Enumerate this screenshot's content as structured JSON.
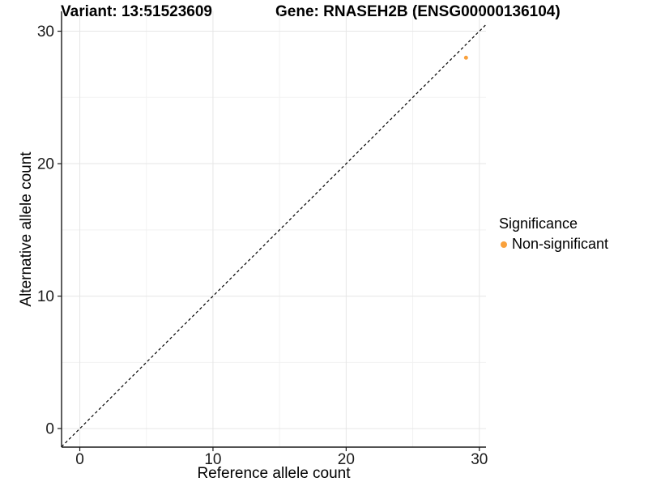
{
  "chart_data": {
    "type": "scatter",
    "titles": {
      "variant": "Variant: 13:51523609",
      "gene": "Gene: RNASEH2B (ENSG00000136104)"
    },
    "xlabel": "Reference allele count",
    "ylabel": "Alternative allele count",
    "xlim": [
      -1.37,
      30.5
    ],
    "ylim": [
      -1.4,
      31.5
    ],
    "x_ticks": [
      0,
      10,
      20,
      30
    ],
    "y_ticks": [
      0,
      10,
      20,
      30
    ],
    "x_minor_ticks": [
      5,
      15,
      25
    ],
    "y_minor_ticks": [
      5,
      15,
      25
    ],
    "grid": "major+minor",
    "identity_line": {
      "style": "dashed",
      "slope": 1,
      "intercept": 0,
      "color": "#000000"
    },
    "series": [
      {
        "name": "Non-significant",
        "color": "#F9A13C",
        "points": [
          {
            "x": 29,
            "y": 28
          }
        ]
      }
    ],
    "legend": {
      "title": "Significance",
      "position": "right",
      "entries": [
        {
          "label": "Non-significant",
          "color": "#F9A13C"
        }
      ]
    },
    "colors": {
      "grid_major": "#e6e6e6",
      "grid_minor": "#f2f2f2",
      "axis": "#1a1a1a",
      "tick_text": "#1a1a1a"
    }
  }
}
